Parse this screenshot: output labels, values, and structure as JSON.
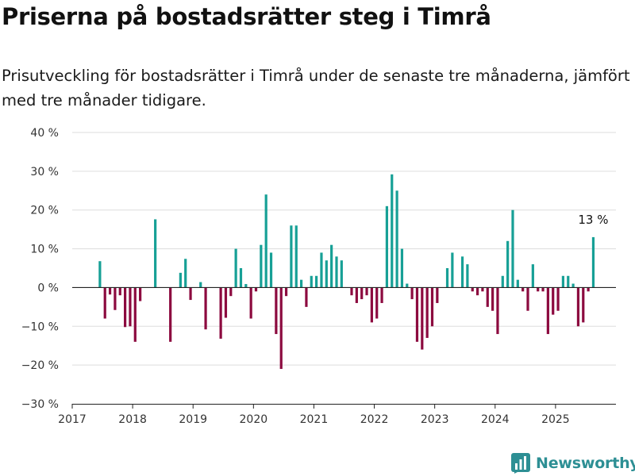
{
  "title": "Priserna på bostadsrätter steg i Timrå",
  "subtitle": "Prisutveckling för bostadsrätter i Timrå under de senaste tre månaderna, jämfört med tre månader tidigare.",
  "brand": "Newsworthy",
  "colors": {
    "positive": "#17a096",
    "negative": "#8c0a3f",
    "brand": "#2d8f94",
    "grid": "#dddddd",
    "axis": "#222222"
  },
  "chart_data": {
    "type": "bar",
    "title": "",
    "xlabel": "",
    "ylabel": "",
    "ylim": [
      -30,
      40
    ],
    "y_ticks": [
      40,
      30,
      20,
      10,
      0,
      -10,
      -20,
      -30
    ],
    "y_tick_labels": [
      "40 %",
      "30 %",
      "20 %",
      "10 %",
      "0 %",
      "−10 %",
      "−20 %",
      "−30 %"
    ],
    "x_ticks": [
      "2017",
      "2018",
      "2019",
      "2020",
      "2021",
      "2022",
      "2023",
      "2024",
      "2025"
    ],
    "xlim": [
      "2017-01",
      "2025-12"
    ],
    "grid": "horizontal",
    "annotation": {
      "text": "13 %",
      "x": "2025-08"
    },
    "x": [
      "2017-06",
      "2017-07",
      "2017-08",
      "2017-09",
      "2017-10",
      "2017-11",
      "2017-12",
      "2018-01",
      "2018-02",
      "2018-05",
      "2018-08",
      "2018-10",
      "2018-11",
      "2018-12",
      "2019-02",
      "2019-03",
      "2019-06",
      "2019-07",
      "2019-08",
      "2019-09",
      "2019-10",
      "2019-11",
      "2019-12",
      "2020-01",
      "2020-02",
      "2020-03",
      "2020-04",
      "2020-05",
      "2020-06",
      "2020-07",
      "2020-08",
      "2020-09",
      "2020-10",
      "2020-11",
      "2020-12",
      "2021-01",
      "2021-02",
      "2021-03",
      "2021-04",
      "2021-05",
      "2021-06",
      "2021-08",
      "2021-09",
      "2021-10",
      "2021-11",
      "2021-12",
      "2022-01",
      "2022-02",
      "2022-03",
      "2022-04",
      "2022-05",
      "2022-06",
      "2022-07",
      "2022-08",
      "2022-09",
      "2022-10",
      "2022-11",
      "2022-12",
      "2023-01",
      "2023-03",
      "2023-04",
      "2023-05",
      "2023-06",
      "2023-07",
      "2023-08",
      "2023-09",
      "2023-10",
      "2023-11",
      "2023-12",
      "2024-01",
      "2024-02",
      "2024-03",
      "2024-04",
      "2024-05",
      "2024-06",
      "2024-07",
      "2024-08",
      "2024-09",
      "2024-10",
      "2024-11",
      "2024-12",
      "2025-01",
      "2025-02",
      "2025-03",
      "2025-04",
      "2025-05",
      "2025-06",
      "2025-07",
      "2025-08"
    ],
    "values": [
      6.8,
      -8.0,
      -1.8,
      -5.8,
      -2.0,
      -10.2,
      -10.0,
      -14.0,
      -3.5,
      17.6,
      -14.0,
      3.8,
      7.4,
      -3.2,
      1.4,
      -10.8,
      -13.2,
      -7.8,
      -2.2,
      10.0,
      5.0,
      0.9,
      -8.0,
      -1.0,
      11.0,
      24.0,
      9.0,
      -12.0,
      -21.0,
      -2.2,
      16.0,
      16.0,
      2.0,
      -5.0,
      3.0,
      3.0,
      9.0,
      7.0,
      11.0,
      8.0,
      7.0,
      -2.0,
      -4.0,
      -3.0,
      -2.0,
      -9.0,
      -8.0,
      -4.0,
      21.0,
      29.2,
      25.0,
      10.0,
      1.0,
      -3.0,
      -14.0,
      -16.0,
      -13.0,
      -10.0,
      -4.0,
      5.0,
      9.0,
      0.0,
      8.0,
      6.0,
      -1.0,
      -2.0,
      -1.0,
      -5.0,
      -6.0,
      -12.0,
      3.0,
      12.0,
      20.0,
      2.0,
      -1.0,
      -6.0,
      6.0,
      -1.0,
      -1.0,
      -12.0,
      -7.0,
      -6.0,
      3.0,
      3.0,
      1.0,
      -10.0,
      -9.0,
      -1.0,
      13.0
    ]
  }
}
